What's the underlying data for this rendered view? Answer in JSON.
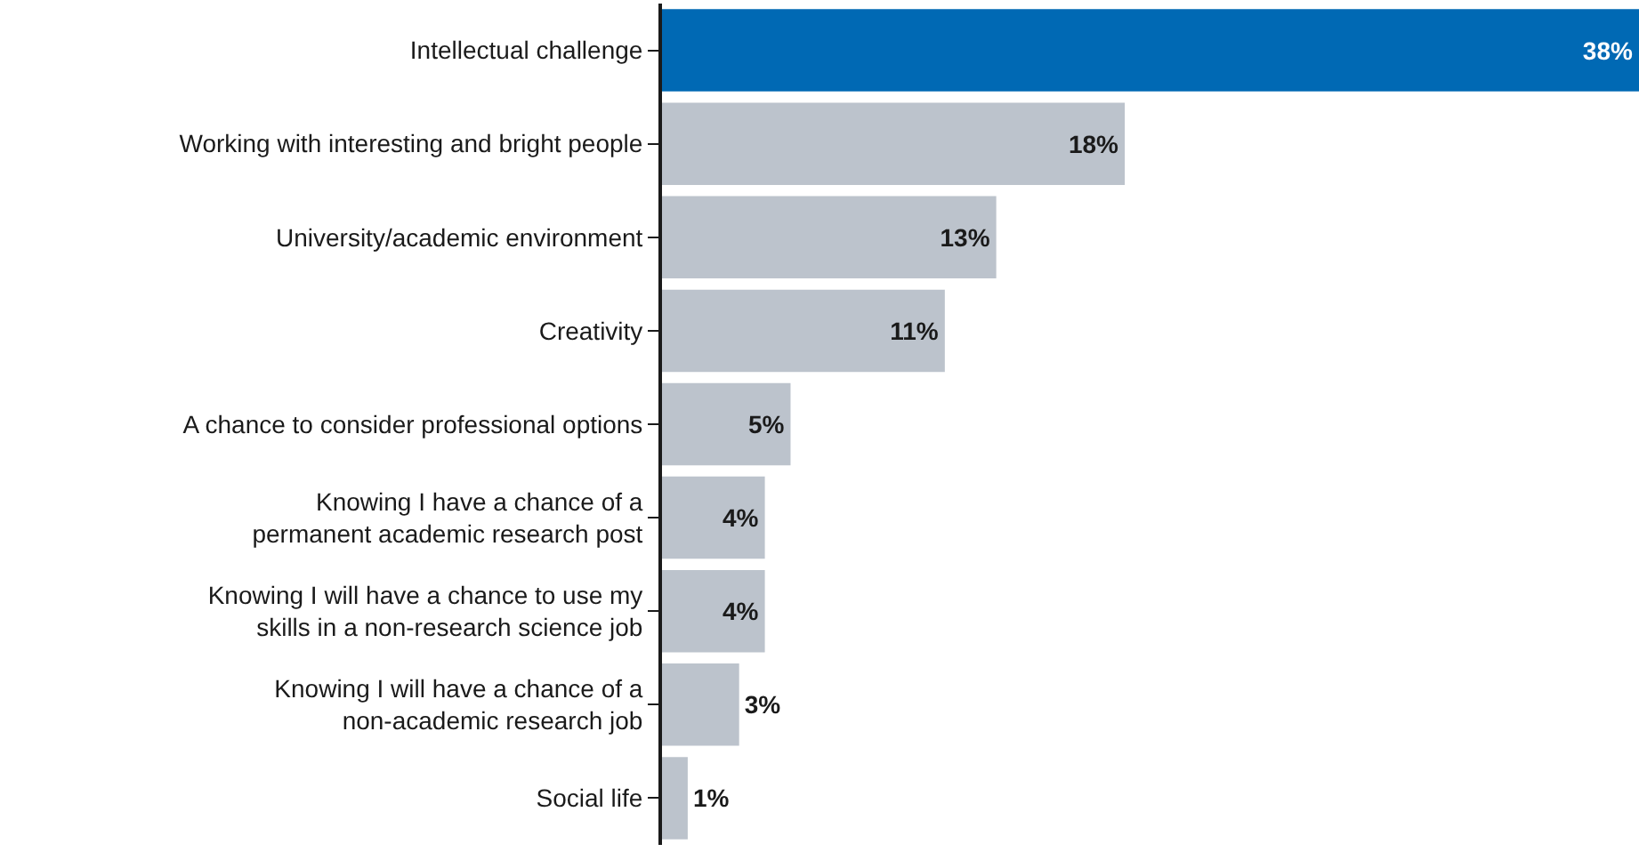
{
  "chart_data": {
    "type": "bar",
    "orientation": "horizontal",
    "categories": [
      "Intellectual challenge",
      "Working with interesting and bright people",
      "University/academic environment",
      "Creativity",
      "A chance to consider professional options",
      "Knowing I have a chance of a\npermanent academic research post",
      "Knowing I will have a chance to use my\nskills in a non-research science job",
      "Knowing I will have a chance of a\nnon-academic research job",
      "Social life"
    ],
    "values": [
      38,
      18,
      13,
      11,
      5,
      4,
      4,
      3,
      1
    ],
    "value_labels": [
      "38%",
      "18%",
      "13%",
      "11%",
      "5%",
      "4%",
      "4%",
      "3%",
      "1%"
    ],
    "colors": [
      "#0069b4",
      "#bcc3cc",
      "#bcc3cc",
      "#bcc3cc",
      "#bcc3cc",
      "#bcc3cc",
      "#bcc3cc",
      "#bcc3cc",
      "#bcc3cc"
    ],
    "data_labels": false
  }
}
